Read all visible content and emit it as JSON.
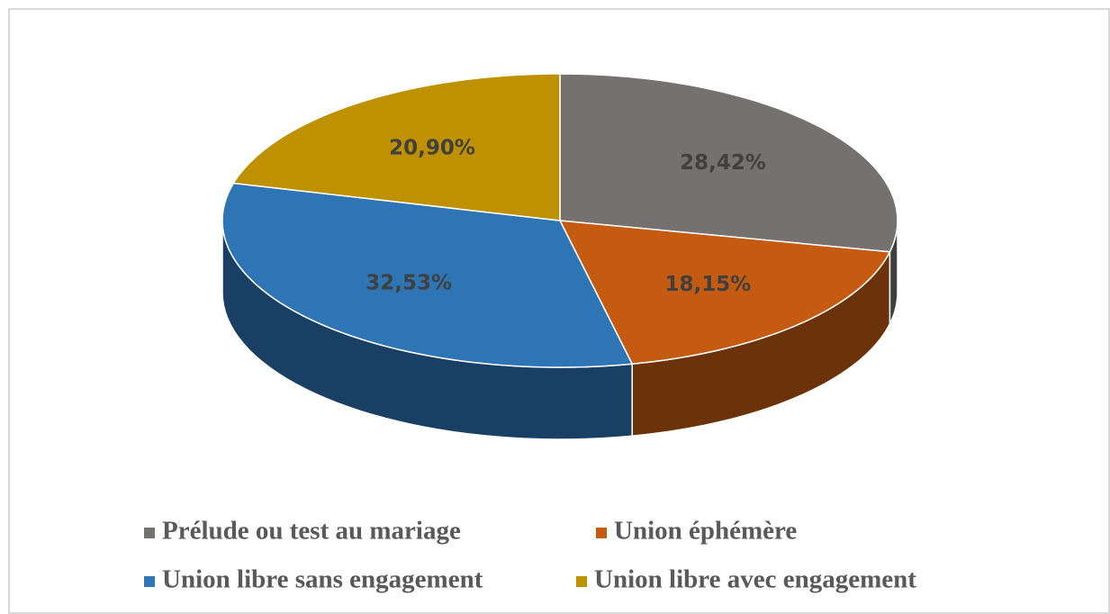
{
  "chart_data": {
    "type": "pie",
    "categories": [
      "Prélude ou test au mariage",
      "Union éphémère",
      "Union libre sans engagement",
      "Union libre avec engagement"
    ],
    "values": [
      28.42,
      18.15,
      32.53,
      20.9
    ],
    "value_labels": [
      "28,42%",
      "18,15%",
      "32,53%",
      "20,90%"
    ],
    "colors": [
      "#767171",
      "#c55a11",
      "#2e75b6",
      "#bf9000"
    ]
  }
}
